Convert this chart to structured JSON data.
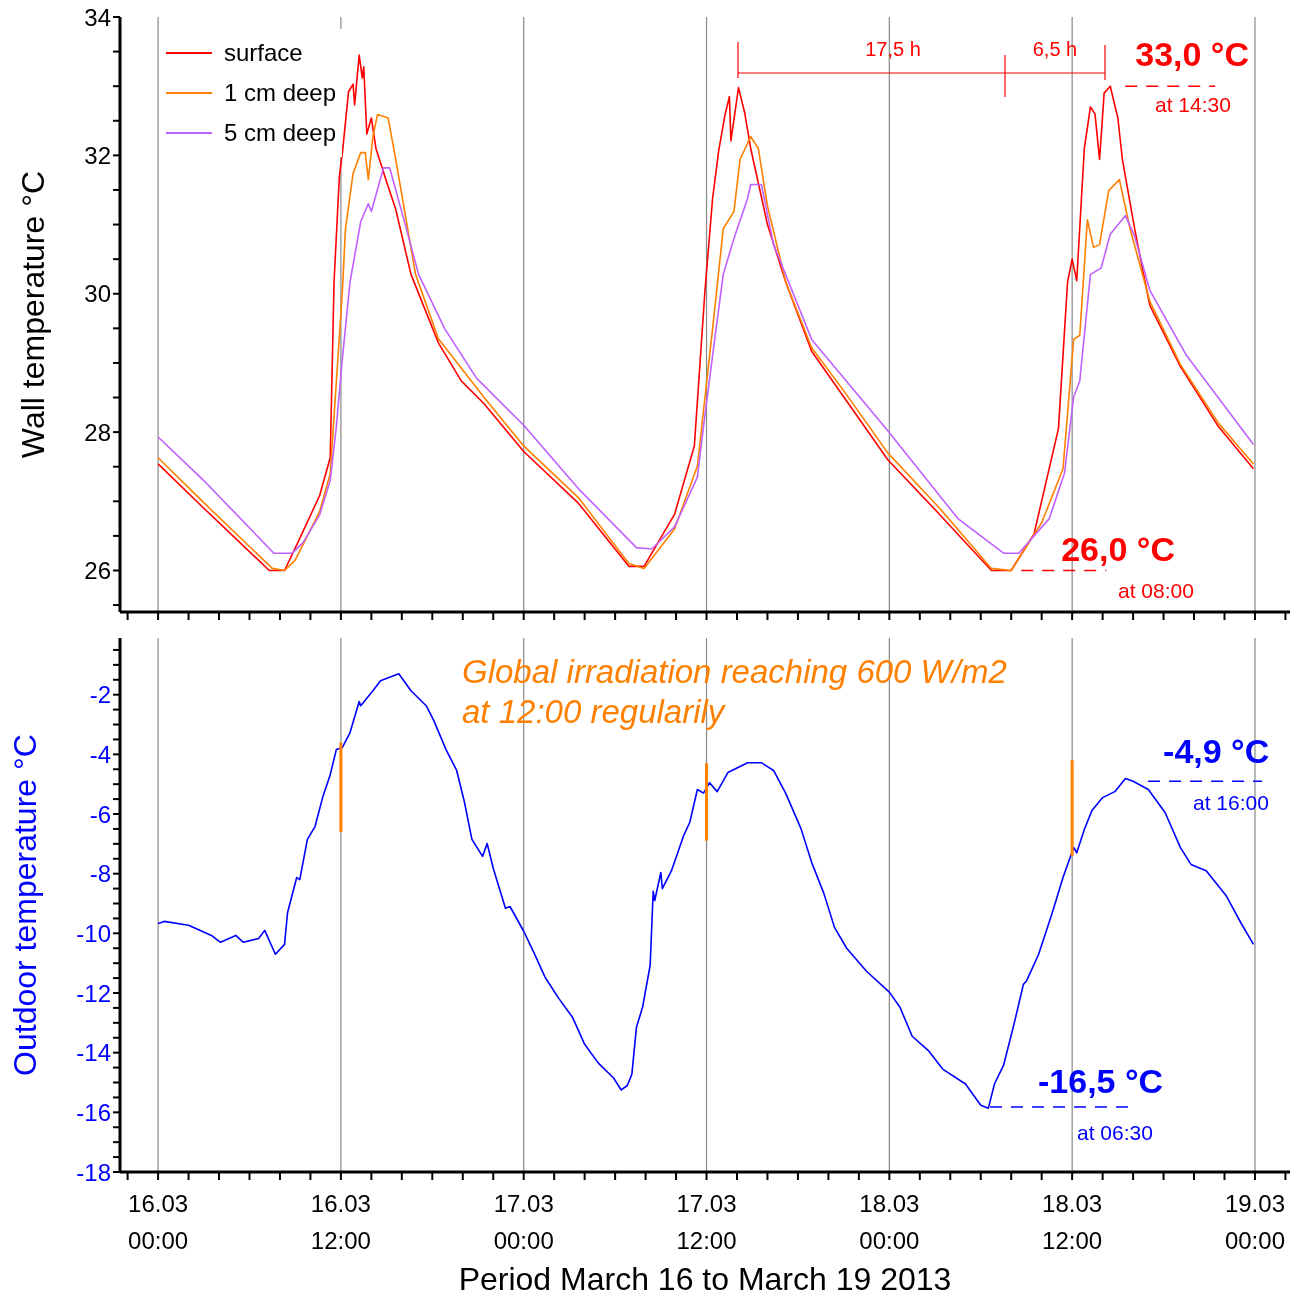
{
  "chart_data": [
    {
      "type": "line",
      "ylabel": "Wall temperature °C",
      "xlim": [
        "2013-03-15T21:30",
        "2013-03-19T02:18"
      ],
      "ylim": [
        25.4,
        34
      ],
      "tick_labels": "y",
      "grid": "x",
      "legend": "top left",
      "line_style": "solid",
      "marker": "none",
      "xticks": [
        {
          "value": "2013-03-15T22:00",
          "label": null
        },
        {
          "value": "2013-03-16T00:00",
          "label": null
        },
        {
          "value": "2013-03-16T02:00",
          "label": null
        },
        {
          "value": "2013-03-16T04:00",
          "label": null
        },
        {
          "value": "2013-03-16T06:00",
          "label": null
        },
        {
          "value": "2013-03-16T08:00",
          "label": null
        },
        {
          "value": "2013-03-16T10:00",
          "label": null
        },
        {
          "value": "2013-03-16T12:00",
          "label": null
        },
        {
          "value": "2013-03-16T14:00",
          "label": null
        },
        {
          "value": "2013-03-16T16:00",
          "label": null
        },
        {
          "value": "2013-03-16T18:00",
          "label": null
        },
        {
          "value": "2013-03-16T20:00",
          "label": null
        },
        {
          "value": "2013-03-16T22:00",
          "label": null
        },
        {
          "value": "2013-03-17T00:00",
          "label": null
        },
        {
          "value": "2013-03-17T02:00",
          "label": null
        },
        {
          "value": "2013-03-17T04:00",
          "label": null
        },
        {
          "value": "2013-03-17T06:00",
          "label": null
        },
        {
          "value": "2013-03-17T08:00",
          "label": null
        },
        {
          "value": "2013-03-17T10:00",
          "label": null
        },
        {
          "value": "2013-03-17T12:00",
          "label": null
        },
        {
          "value": "2013-03-17T14:00",
          "label": null
        },
        {
          "value": "2013-03-17T16:00",
          "label": null
        },
        {
          "value": "2013-03-17T18:00",
          "label": null
        },
        {
          "value": "2013-03-17T20:00",
          "label": null
        },
        {
          "value": "2013-03-17T22:00",
          "label": null
        },
        {
          "value": "2013-03-18T00:00",
          "label": null
        },
        {
          "value": "2013-03-18T02:00",
          "label": null
        },
        {
          "value": "2013-03-18T04:00",
          "label": null
        },
        {
          "value": "2013-03-18T06:00",
          "label": null
        },
        {
          "value": "2013-03-18T08:00",
          "label": null
        },
        {
          "value": "2013-03-18T10:00",
          "label": null
        },
        {
          "value": "2013-03-18T12:00",
          "label": null
        },
        {
          "value": "2013-03-18T14:00",
          "label": null
        },
        {
          "value": "2013-03-18T16:00",
          "label": null
        },
        {
          "value": "2013-03-18T18:00",
          "label": null
        },
        {
          "value": "2013-03-18T20:00",
          "label": null
        },
        {
          "value": "2013-03-18T22:00",
          "label": null
        },
        {
          "value": "2013-03-19T00:00",
          "label": null
        },
        {
          "value": "2013-03-19T02:00",
          "label": null
        }
      ],
      "yticks": [
        {
          "value": 25.5,
          "label": null
        },
        26,
        {
          "value": 26.5,
          "label": null
        },
        {
          "value": 27,
          "label": null
        },
        {
          "value": 27.5,
          "label": null
        },
        28,
        {
          "value": 28.5,
          "label": null
        },
        {
          "value": 29,
          "label": null
        },
        {
          "value": 29.5,
          "label": null
        },
        30,
        {
          "value": 30.5,
          "label": null
        },
        {
          "value": 31,
          "label": null
        },
        {
          "value": 31.5,
          "label": null
        },
        32,
        {
          "value": 32.5,
          "label": null
        },
        {
          "value": 33,
          "label": null
        },
        {
          "value": 33.5,
          "label": null
        },
        34
      ],
      "series": [
        {
          "name": "surface",
          "color": "#ff0000",
          "x": [
            "2013-03-16T00:00",
            "2013-03-16T03:00",
            "2013-03-16T07:18",
            "2013-03-16T08:18",
            "2013-03-16T09:06",
            "2013-03-16T10:36",
            "2013-03-16T11:18",
            "2013-03-16T11:33",
            "2013-03-16T11:54",
            "2013-03-16T12:06",
            "2013-03-16T12:30",
            "2013-03-16T12:48",
            "2013-03-16T12:54",
            "2013-03-16T13:12",
            "2013-03-16T13:24",
            "2013-03-16T13:30",
            "2013-03-16T13:42",
            "2013-03-16T14:00",
            "2013-03-16T14:18",
            "2013-03-16T15:06",
            "2013-03-16T15:36",
            "2013-03-16T16:36",
            "2013-03-16T18:24",
            "2013-03-16T19:54",
            "2013-03-16T21:24",
            "2013-03-17T00:00",
            "2013-03-17T03:36",
            "2013-03-17T06:54",
            "2013-03-17T07:54",
            "2013-03-17T09:54",
            "2013-03-17T11:12",
            "2013-03-17T11:54",
            "2013-03-17T12:24",
            "2013-03-17T12:48",
            "2013-03-17T13:12",
            "2013-03-17T13:30",
            "2013-03-17T13:36",
            "2013-03-17T14:06",
            "2013-03-17T14:30",
            "2013-03-17T14:54",
            "2013-03-17T16:00",
            "2013-03-17T17:12",
            "2013-03-17T18:54",
            "2013-03-17T21:00",
            "2013-03-17T23:54",
            "2013-03-18T03:18",
            "2013-03-18T06:42",
            "2013-03-18T08:00",
            "2013-03-18T09:30",
            "2013-03-18T11:06",
            "2013-03-18T11:42",
            "2013-03-18T12:00",
            "2013-03-18T12:18",
            "2013-03-18T12:48",
            "2013-03-18T13:12",
            "2013-03-18T13:30",
            "2013-03-18T13:48",
            "2013-03-18T14:06",
            "2013-03-18T14:30",
            "2013-03-18T15:00",
            "2013-03-18T15:18",
            "2013-03-18T16:06",
            "2013-03-18T17:06",
            "2013-03-18T19:06",
            "2013-03-18T21:36",
            "2013-03-18T23:54"
          ],
          "values": [
            27.54,
            26.9,
            26.0,
            26.0,
            26.37,
            27.08,
            27.63,
            30.17,
            31.7,
            32.04,
            32.92,
            33.03,
            32.73,
            33.45,
            33.12,
            33.28,
            32.31,
            32.54,
            32.1,
            31.55,
            31.22,
            30.28,
            29.29,
            28.74,
            28.41,
            27.72,
            26.97,
            26.06,
            26.06,
            26.81,
            27.8,
            30.05,
            31.38,
            32.07,
            32.57,
            32.85,
            32.21,
            32.98,
            32.62,
            32.1,
            31.0,
            30.17,
            29.17,
            28.51,
            27.6,
            26.81,
            26.0,
            26.0,
            26.53,
            28.05,
            30.17,
            30.5,
            30.19,
            32.1,
            32.7,
            32.6,
            31.94,
            32.9,
            33.0,
            32.54,
            31.94,
            30.94,
            29.83,
            28.95,
            28.08,
            27.47
          ]
        },
        {
          "name": "1 cm deep",
          "color": "#ff8000",
          "x": [
            "2013-03-16T00:00",
            "2013-03-16T03:00",
            "2013-03-16T07:30",
            "2013-03-16T08:18",
            "2013-03-16T09:00",
            "2013-03-16T10:36",
            "2013-03-16T11:18",
            "2013-03-16T12:06",
            "2013-03-16T12:18",
            "2013-03-16T12:48",
            "2013-03-16T13:18",
            "2013-03-16T13:36",
            "2013-03-16T13:48",
            "2013-03-16T14:06",
            "2013-03-16T14:24",
            "2013-03-16T15:06",
            "2013-03-16T15:36",
            "2013-03-16T16:54",
            "2013-03-16T18:24",
            "2013-03-16T21:24",
            "2013-03-17T00:00",
            "2013-03-17T03:36",
            "2013-03-17T06:54",
            "2013-03-17T07:54",
            "2013-03-17T09:54",
            "2013-03-17T11:24",
            "2013-03-17T12:24",
            "2013-03-17T13:06",
            "2013-03-17T13:48",
            "2013-03-17T14:12",
            "2013-03-17T14:54",
            "2013-03-17T15:24",
            "2013-03-17T16:00",
            "2013-03-17T17:12",
            "2013-03-17T18:54",
            "2013-03-17T21:00",
            "2013-03-17T23:54",
            "2013-03-18T03:18",
            "2013-03-18T06:42",
            "2013-03-18T08:00",
            "2013-03-18T10:00",
            "2013-03-18T11:24",
            "2013-03-18T12:06",
            "2013-03-18T12:30",
            "2013-03-18T13:00",
            "2013-03-18T13:24",
            "2013-03-18T13:48",
            "2013-03-18T14:24",
            "2013-03-18T15:06",
            "2013-03-18T15:48",
            "2013-03-18T17:06",
            "2013-03-18T19:06",
            "2013-03-18T21:36",
            "2013-03-18T23:54"
          ],
          "values": [
            27.63,
            26.98,
            26.03,
            26.0,
            26.15,
            26.85,
            27.4,
            30.05,
            30.94,
            31.74,
            32.04,
            32.04,
            31.65,
            32.27,
            32.59,
            32.54,
            31.94,
            30.28,
            29.35,
            28.5,
            27.8,
            27.05,
            26.1,
            26.03,
            26.6,
            27.51,
            29.5,
            30.94,
            31.19,
            31.94,
            32.27,
            32.1,
            31.27,
            30.17,
            29.22,
            28.6,
            27.7,
            26.9,
            26.03,
            26.0,
            26.69,
            27.47,
            29.34,
            29.4,
            31.07,
            30.67,
            30.71,
            31.49,
            31.65,
            30.94,
            29.89,
            28.98,
            28.13,
            27.54
          ]
        },
        {
          "name": "5 cm deep",
          "color": "#c060ff",
          "x": [
            "2013-03-16T00:00",
            "2013-03-16T03:00",
            "2013-03-16T07:36",
            "2013-03-16T08:48",
            "2013-03-16T09:30",
            "2013-03-16T10:36",
            "2013-03-16T11:18",
            "2013-03-16T11:42",
            "2013-03-16T12:06",
            "2013-03-16T12:36",
            "2013-03-16T13:18",
            "2013-03-16T13:48",
            "2013-03-16T14:00",
            "2013-03-16T14:48",
            "2013-03-16T15:12",
            "2013-03-16T16:06",
            "2013-03-16T17:06",
            "2013-03-16T18:48",
            "2013-03-16T20:54",
            "2013-03-17T00:00",
            "2013-03-17T03:36",
            "2013-03-17T07:24",
            "2013-03-17T08:24",
            "2013-03-17T09:54",
            "2013-03-17T11:24",
            "2013-03-17T11:48",
            "2013-03-17T12:36",
            "2013-03-17T13:06",
            "2013-03-17T13:48",
            "2013-03-17T14:42",
            "2013-03-17T14:54",
            "2013-03-17T15:36",
            "2013-03-17T16:24",
            "2013-03-17T18:54",
            "2013-03-17T23:54",
            "2013-03-18T04:30",
            "2013-03-18T07:30",
            "2013-03-18T08:30",
            "2013-03-18T10:30",
            "2013-03-18T11:30",
            "2013-03-18T12:06",
            "2013-03-18T12:30",
            "2013-03-18T13:12",
            "2013-03-18T13:54",
            "2013-03-18T14:30",
            "2013-03-18T15:30",
            "2013-03-18T16:06",
            "2013-03-18T17:06",
            "2013-03-18T19:30",
            "2013-03-18T23:54"
          ],
          "values": [
            27.93,
            27.3,
            26.25,
            26.25,
            26.4,
            26.8,
            27.3,
            28.08,
            29.07,
            30.17,
            31.04,
            31.3,
            31.19,
            31.82,
            31.82,
            31.1,
            30.28,
            29.5,
            28.78,
            28.1,
            27.18,
            26.33,
            26.31,
            26.63,
            27.35,
            28.08,
            29.45,
            30.28,
            30.8,
            31.38,
            31.58,
            31.58,
            30.71,
            29.34,
            28.02,
            26.75,
            26.25,
            26.25,
            26.75,
            27.41,
            28.51,
            28.74,
            30.28,
            30.37,
            30.86,
            31.13,
            30.83,
            30.05,
            29.11,
            27.82
          ]
        }
      ],
      "annotations": [
        "17,5 h",
        "6,5 h",
        {
          "text": "33,0 °C",
          "x": "2013-03-18T14:30",
          "y": 33.0
        },
        "at 14:30",
        {
          "text": "26,0 °C",
          "x": "2013-03-18T08:00",
          "y": 26.0
        },
        "at 08:00"
      ]
    },
    {
      "type": "line",
      "ylabel": "Outdoor temperature °C",
      "xlabel": "Period March 16 to March 19 2013",
      "xlim": [
        "2013-03-15T21:30",
        "2013-03-19T02:18"
      ],
      "ylim": [
        -18,
        -0.1
      ],
      "grid": "x",
      "legend": false,
      "line_style": "solid",
      "marker": "none",
      "xticks": [
        {
          "value": "2013-03-15T22:00",
          "label": null
        },
        {
          "value": "2013-03-16T00:00",
          "label": "16.03 00:00"
        },
        {
          "value": "2013-03-16T02:00",
          "label": null
        },
        {
          "value": "2013-03-16T04:00",
          "label": null
        },
        {
          "value": "2013-03-16T06:00",
          "label": null
        },
        {
          "value": "2013-03-16T08:00",
          "label": null
        },
        {
          "value": "2013-03-16T10:00",
          "label": null
        },
        {
          "value": "2013-03-16T12:00",
          "label": "16.03 12:00"
        },
        {
          "value": "2013-03-16T14:00",
          "label": null
        },
        {
          "value": "2013-03-16T16:00",
          "label": null
        },
        {
          "value": "2013-03-16T18:00",
          "label": null
        },
        {
          "value": "2013-03-16T20:00",
          "label": null
        },
        {
          "value": "2013-03-16T22:00",
          "label": null
        },
        {
          "value": "2013-03-17T00:00",
          "label": "17.03 00:00"
        },
        {
          "value": "2013-03-17T02:00",
          "label": null
        },
        {
          "value": "2013-03-17T04:00",
          "label": null
        },
        {
          "value": "2013-03-17T06:00",
          "label": null
        },
        {
          "value": "2013-03-17T08:00",
          "label": null
        },
        {
          "value": "2013-03-17T10:00",
          "label": null
        },
        {
          "value": "2013-03-17T12:00",
          "label": "17.03 12:00"
        },
        {
          "value": "2013-03-17T14:00",
          "label": null
        },
        {
          "value": "2013-03-17T16:00",
          "label": null
        },
        {
          "value": "2013-03-17T18:00",
          "label": null
        },
        {
          "value": "2013-03-17T20:00",
          "label": null
        },
        {
          "value": "2013-03-17T22:00",
          "label": null
        },
        {
          "value": "2013-03-18T00:00",
          "label": "18.03 00:00"
        },
        {
          "value": "2013-03-18T02:00",
          "label": null
        },
        {
          "value": "2013-03-18T04:00",
          "label": null
        },
        {
          "value": "2013-03-18T06:00",
          "label": null
        },
        {
          "value": "2013-03-18T08:00",
          "label": null
        },
        {
          "value": "2013-03-18T10:00",
          "label": null
        },
        {
          "value": "2013-03-18T12:00",
          "label": "18.03 12:00"
        },
        {
          "value": "2013-03-18T14:00",
          "label": null
        },
        {
          "value": "2013-03-18T16:00",
          "label": null
        },
        {
          "value": "2013-03-18T18:00",
          "label": null
        },
        {
          "value": "2013-03-18T20:00",
          "label": null
        },
        {
          "value": "2013-03-18T22:00",
          "label": null
        },
        {
          "value": "2013-03-19T00:00",
          "label": "19.03 00:00"
        },
        {
          "value": "2013-03-19T02:00",
          "label": null
        }
      ],
      "yticks": [
        -18,
        {
          "value": -17.5,
          "label": null
        },
        {
          "value": -17,
          "label": null
        },
        {
          "value": -16.5,
          "label": null
        },
        -16,
        {
          "value": -15.5,
          "label": null
        },
        {
          "value": -15,
          "label": null
        },
        {
          "value": -14.5,
          "label": null
        },
        -14,
        {
          "value": -13.5,
          "label": null
        },
        {
          "value": -13,
          "label": null
        },
        {
          "value": -12.5,
          "label": null
        },
        -12,
        {
          "value": -11.5,
          "label": null
        },
        {
          "value": -11,
          "label": null
        },
        {
          "value": -10.5,
          "label": null
        },
        -10,
        {
          "value": -9.5,
          "label": null
        },
        {
          "value": -9,
          "label": null
        },
        {
          "value": -8.5,
          "label": null
        },
        -8,
        {
          "value": -7.5,
          "label": null
        },
        {
          "value": -7,
          "label": null
        },
        {
          "value": -6.5,
          "label": null
        },
        -6,
        {
          "value": -5.5,
          "label": null
        },
        {
          "value": -5,
          "label": null
        },
        {
          "value": -4.5,
          "label": null
        },
        -4,
        {
          "value": -3.5,
          "label": null
        },
        {
          "value": -3,
          "label": null
        },
        {
          "value": -2.5,
          "label": null
        },
        -2,
        {
          "value": -1.5,
          "label": null
        },
        {
          "value": -1,
          "label": null
        },
        {
          "value": -0.5,
          "label": null
        }
      ],
      "series": [
        {
          "color": "#0000ff",
          "x": [
            "2013-03-16T00:00",
            "2013-03-16T00:24",
            "2013-03-16T02:00",
            "2013-03-16T03:30",
            "2013-03-16T04:06",
            "2013-03-16T05:06",
            "2013-03-16T05:36",
            "2013-03-16T06:36",
            "2013-03-16T07:00",
            "2013-03-16T07:42",
            "2013-03-16T08:18",
            "2013-03-16T08:30",
            "2013-03-16T09:06",
            "2013-03-16T09:18",
            "2013-03-16T09:48",
            "2013-03-16T10:18",
            "2013-03-16T10:48",
            "2013-03-16T11:18",
            "2013-03-16T11:42",
            "2013-03-16T12:06",
            "2013-03-16T12:36",
            "2013-03-16T13:12",
            "2013-03-16T13:18",
            "2013-03-16T14:06",
            "2013-03-16T14:36",
            "2013-03-16T15:48",
            "2013-03-16T16:36",
            "2013-03-16T17:36",
            "2013-03-16T18:06",
            "2013-03-16T18:54",
            "2013-03-16T19:36",
            "2013-03-16T20:06",
            "2013-03-16T20:36",
            "2013-03-16T21:18",
            "2013-03-16T21:36",
            "2013-03-16T22:00",
            "2013-03-16T22:48",
            "2013-03-16T23:06",
            "2013-03-17T00:00",
            "2013-03-17T00:36",
            "2013-03-17T01:24",
            "2013-03-17T02:18",
            "2013-03-17T03:12",
            "2013-03-17T04:00",
            "2013-03-17T04:54",
            "2013-03-17T05:54",
            "2013-03-17T06:24",
            "2013-03-17T06:48",
            "2013-03-17T07:06",
            "2013-03-17T07:24",
            "2013-03-17T07:48",
            "2013-03-17T08:18",
            "2013-03-17T08:30",
            "2013-03-17T08:36",
            "2013-03-17T09:00",
            "2013-03-17T09:06",
            "2013-03-17T09:42",
            "2013-03-17T10:30",
            "2013-03-17T10:54",
            "2013-03-17T11:24",
            "2013-03-17T11:48",
            "2013-03-17T12:12",
            "2013-03-17T12:42",
            "2013-03-17T13:24",
            "2013-03-17T14:42",
            "2013-03-17T15:36",
            "2013-03-17T16:24",
            "2013-03-17T17:12",
            "2013-03-17T18:12",
            "2013-03-17T18:54",
            "2013-03-17T19:42",
            "2013-03-17T20:24",
            "2013-03-17T21:12",
            "2013-03-17T22:30",
            "2013-03-18T00:00",
            "2013-03-18T00:42",
            "2013-03-18T01:30",
            "2013-03-18T02:36",
            "2013-03-18T03:30",
            "2013-03-18T05:00",
            "2013-03-18T06:00",
            "2013-03-18T06:30",
            "2013-03-18T06:54",
            "2013-03-18T07:30",
            "2013-03-18T08:12",
            "2013-03-18T08:48",
            "2013-03-18T09:00",
            "2013-03-18T09:48",
            "2013-03-18T10:42",
            "2013-03-18T11:24",
            "2013-03-18T12:06",
            "2013-03-18T12:18",
            "2013-03-18T12:48",
            "2013-03-18T13:18",
            "2013-03-18T14:00",
            "2013-03-18T14:48",
            "2013-03-18T15:30",
            "2013-03-18T16:00",
            "2013-03-18T17:00",
            "2013-03-18T18:06",
            "2013-03-18T19:06",
            "2013-03-18T19:48",
            "2013-03-18T20:48",
            "2013-03-18T22:06",
            "2013-03-18T23:06",
            "2013-03-18T23:54"
          ],
          "values": [
            -9.67,
            -9.6,
            -9.73,
            -10.07,
            -10.3,
            -10.07,
            -10.3,
            -10.17,
            -9.9,
            -10.7,
            -10.37,
            -9.3,
            -8.13,
            -8.2,
            -6.85,
            -6.42,
            -5.45,
            -4.68,
            -3.84,
            -3.77,
            -3.27,
            -2.23,
            -2.37,
            -1.87,
            -1.53,
            -1.3,
            -1.87,
            -2.37,
            -2.87,
            -3.84,
            -4.54,
            -5.58,
            -6.85,
            -7.42,
            -6.99,
            -7.82,
            -9.16,
            -9.1,
            -9.93,
            -10.57,
            -11.47,
            -12.18,
            -12.81,
            -13.72,
            -14.35,
            -14.85,
            -15.25,
            -15.1,
            -14.72,
            -13.15,
            -12.48,
            -11.07,
            -8.59,
            -8.9,
            -7.96,
            -8.5,
            -7.9,
            -6.72,
            -6.28,
            -5.18,
            -5.3,
            -4.95,
            -5.25,
            -4.61,
            -4.28,
            -4.28,
            -4.54,
            -5.31,
            -6.49,
            -7.62,
            -8.66,
            -9.8,
            -10.5,
            -11.27,
            -11.97,
            -12.48,
            -13.45,
            -13.95,
            -14.55,
            -15.05,
            -15.76,
            -15.86,
            -15.05,
            -14.42,
            -13.01,
            -11.71,
            -11.6,
            -10.7,
            -9.3,
            -8.13,
            -7.12,
            -7.3,
            -6.52,
            -5.88,
            -5.45,
            -5.25,
            -4.81,
            -4.9,
            -5.18,
            -5.95,
            -7.12,
            -7.69,
            -7.9,
            -8.73,
            -9.67,
            -10.37
          ]
        },
        {
          "color": "#ff8000",
          "x": [
            "2013-03-16T12:00",
            "2013-03-16T12:00",
            "2013-03-17T00:00",
            "2013-03-17T12:00",
            "2013-03-17T12:00",
            "2013-03-18T00:00",
            "2013-03-18T12:00",
            "2013-03-18T12:00"
          ],
          "values": [
            -3.6,
            -6.6,
            null,
            -4.3,
            -6.9,
            null,
            -4.2,
            -7.4
          ]
        }
      ],
      "annotations": [
        "Global irradiation reaching 600 W/m2 at 12:00 regularily",
        {
          "text": "-4,9 °C",
          "x": "2013-03-18T16:00",
          "y": -4.9
        },
        "at 16:00",
        "-16,5 °C",
        "at 06:30"
      ]
    }
  ]
}
